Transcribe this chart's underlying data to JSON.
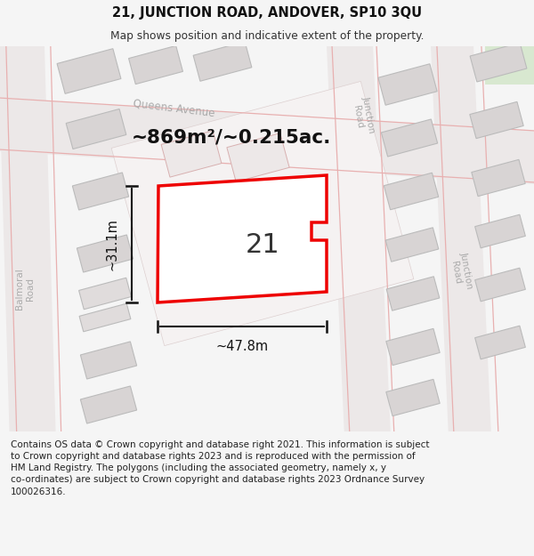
{
  "title_line1": "21, JUNCTION ROAD, ANDOVER, SP10 3QU",
  "title_line2": "Map shows position and indicative extent of the property.",
  "footer_text": "Contains OS data © Crown copyright and database right 2021. This information is subject to Crown copyright and database rights 2023 and is reproduced with the permission of HM Land Registry. The polygons (including the associated geometry, namely x, y co-ordinates) are subject to Crown copyright and database rights 2023 Ordnance Survey 100026316.",
  "area_label": "~869m²/~0.215ac.",
  "width_label": "~47.8m",
  "height_label": "~31.1m",
  "number_label": "21",
  "bg_color": "#f5f5f5",
  "map_bg": "#f2f0f0",
  "road_color": "#f5eded",
  "road_line_color": "#e8b0b0",
  "building_fill": "#d8d4d4",
  "building_stroke": "#bbbbbb",
  "property_fill": "#ffffff",
  "property_stroke": "#ee0000",
  "text_color": "#333333",
  "road_label_color": "#aaaaaa",
  "dim_color": "#111111",
  "title_bg": "#ffffff",
  "green_fill": "#d8e8d0"
}
